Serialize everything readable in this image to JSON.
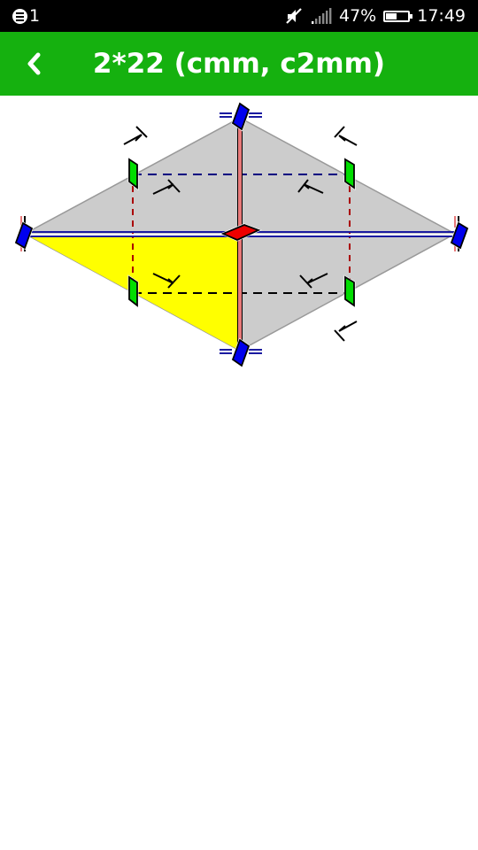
{
  "status_bar": {
    "notification_count": "1",
    "battery_percent": "47%",
    "battery_level": 0.47,
    "time": "17:49",
    "icons": [
      "notification-icon",
      "mute-icon",
      "signal-icon",
      "battery-icon"
    ]
  },
  "app_bar": {
    "title": "2*22 (cmm, c2mm)",
    "back_icon": "back-chevron-icon",
    "color": "#15b10f"
  },
  "diagram": {
    "tile_fill": "#cccccc",
    "fundamental_region_fill": "#ffff00",
    "mirror_line_colors": [
      "#1a1aa0",
      "#e87a7a"
    ],
    "glide_line_colors": [
      "#000080",
      "#aa0000"
    ],
    "two_fold_center_colors": [
      "#0000ee",
      "#00dd00",
      "#ee0000"
    ]
  }
}
